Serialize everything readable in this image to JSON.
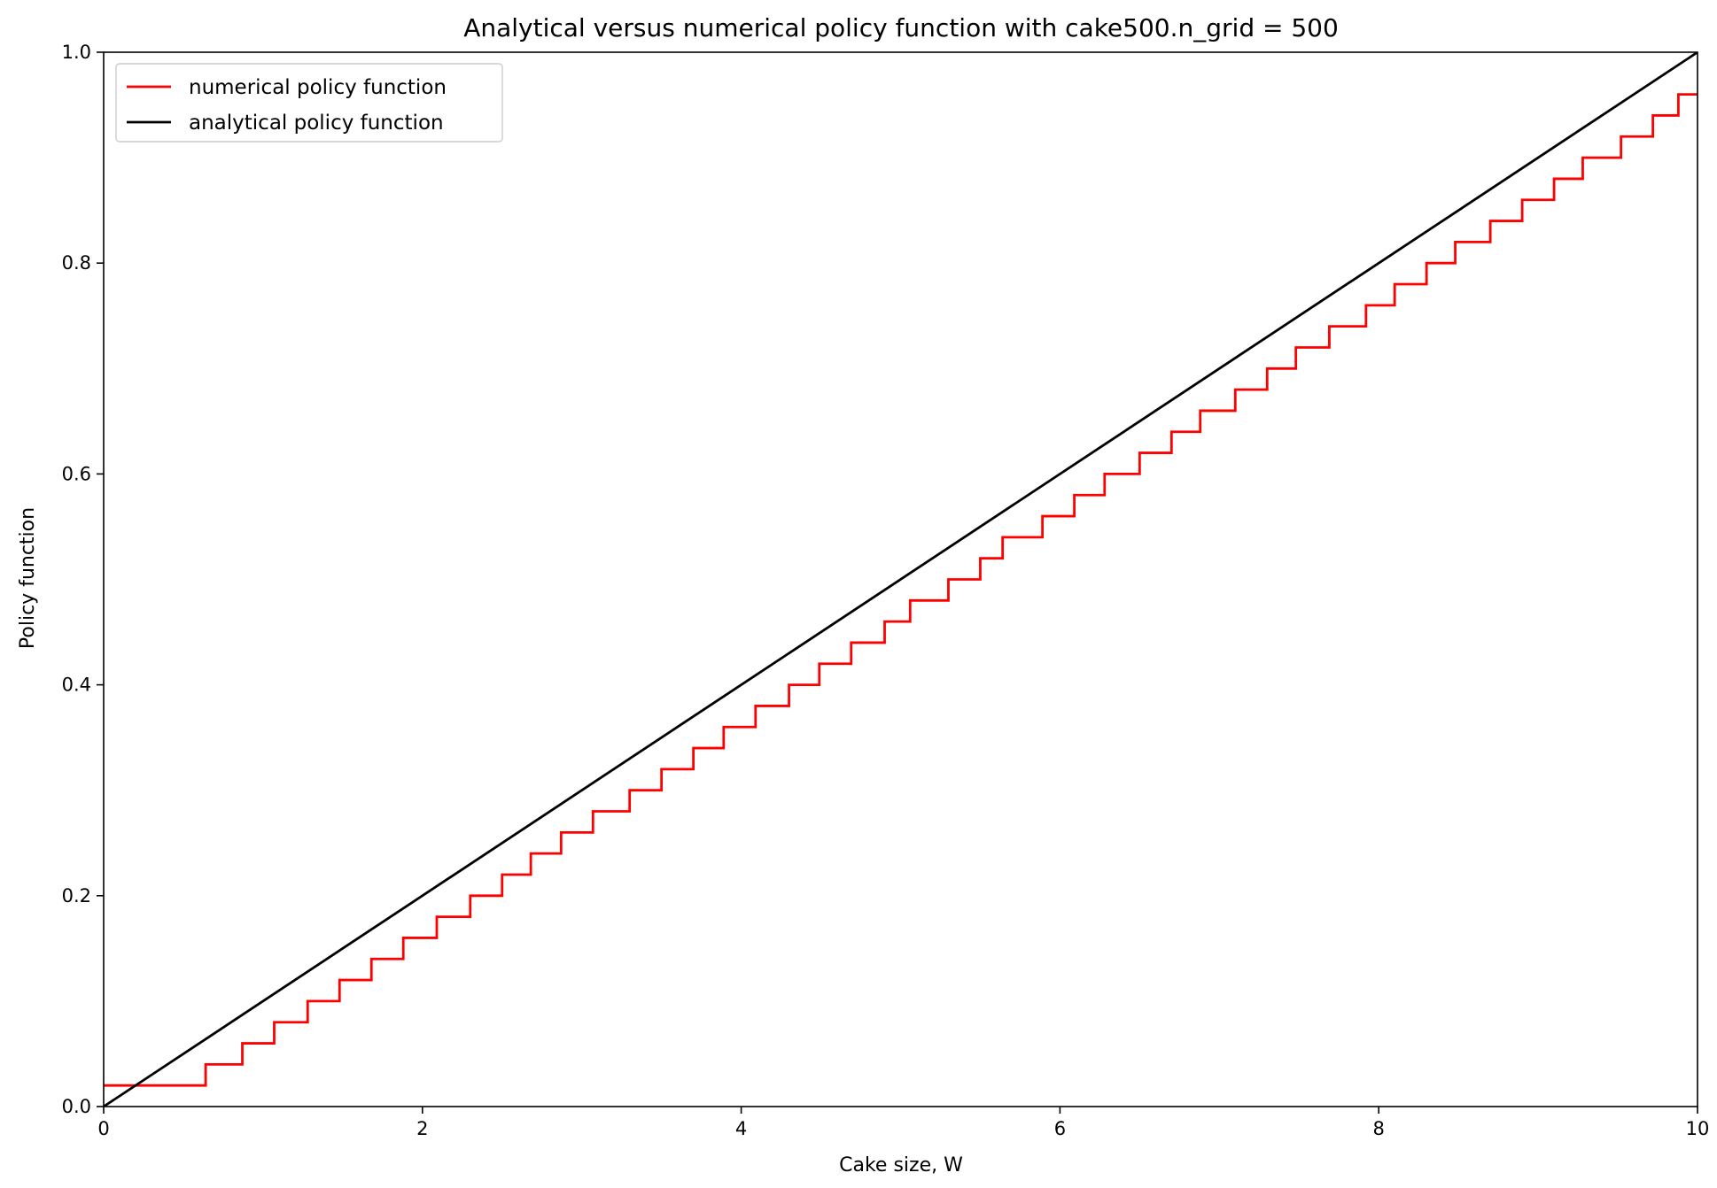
{
  "chart_data": {
    "type": "line",
    "title": "Analytical versus numerical policy function with cake500.n_grid = 500",
    "xlabel": "Cake size, W",
    "ylabel": "Policy function",
    "xlim": [
      0,
      10
    ],
    "ylim": [
      0,
      1.0
    ],
    "xticks": [
      0,
      2,
      4,
      6,
      8,
      10
    ],
    "xtick_labels": [
      "0",
      "2",
      "4",
      "6",
      "8",
      "10"
    ],
    "yticks": [
      0.0,
      0.2,
      0.4,
      0.6,
      0.8,
      1.0
    ],
    "ytick_labels": [
      "0.0",
      "0.2",
      "0.4",
      "0.6",
      "0.8",
      "1.0"
    ],
    "grid": false,
    "legend_position": "top-left",
    "series": [
      {
        "name": "numerical policy function",
        "color": "#ff0000",
        "step": true,
        "x": [
          0,
          0.64,
          0.87,
          1.07,
          1.28,
          1.48,
          1.68,
          1.88,
          2.09,
          2.3,
          2.5,
          2.68,
          2.87,
          3.07,
          3.3,
          3.5,
          3.7,
          3.89,
          4.09,
          4.3,
          4.49,
          4.69,
          4.9,
          5.06,
          5.3,
          5.5,
          5.64,
          5.89,
          6.09,
          6.28,
          6.5,
          6.7,
          6.88,
          7.1,
          7.3,
          7.48,
          7.69,
          7.92,
          8.1,
          8.3,
          8.48,
          8.7,
          8.9,
          9.1,
          9.28,
          9.52,
          9.72,
          9.88,
          10
        ],
        "y": [
          0.02,
          0.04,
          0.06,
          0.08,
          0.1,
          0.12,
          0.14,
          0.16,
          0.18,
          0.2,
          0.22,
          0.24,
          0.26,
          0.28,
          0.3,
          0.32,
          0.34,
          0.36,
          0.38,
          0.4,
          0.42,
          0.44,
          0.46,
          0.48,
          0.5,
          0.52,
          0.54,
          0.56,
          0.58,
          0.6,
          0.62,
          0.64,
          0.66,
          0.68,
          0.7,
          0.72,
          0.74,
          0.76,
          0.78,
          0.8,
          0.82,
          0.84,
          0.86,
          0.88,
          0.9,
          0.92,
          0.94,
          0.96,
          0.96
        ]
      },
      {
        "name": "analytical policy function",
        "color": "#000000",
        "step": false,
        "x": [
          0,
          10
        ],
        "y": [
          0,
          1.0
        ]
      }
    ]
  }
}
